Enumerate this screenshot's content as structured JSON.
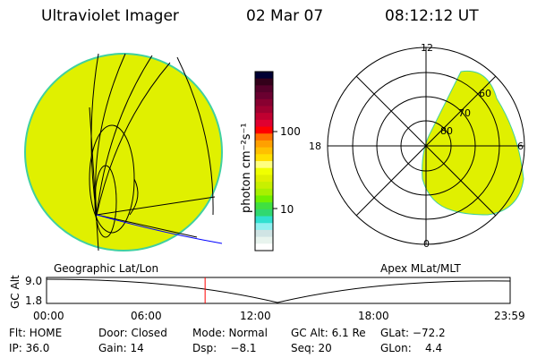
{
  "header": {
    "instrument": "Ultraviolet Imager",
    "date": "02 Mar 07",
    "time": "08:12:12 UT"
  },
  "colorbar": {
    "label": "photon cm⁻²s⁻¹",
    "ticks": [
      "100",
      "10"
    ],
    "colors": [
      "#000033",
      "#33001a",
      "#55002a",
      "#6a0030",
      "#880030",
      "#a00030",
      "#c00030",
      "#e00030",
      "#ff0000",
      "#ff7000",
      "#ffa000",
      "#ffc000",
      "#ffe000",
      "#ffff80",
      "#f0ff00",
      "#e0f000",
      "#c8f000",
      "#a8f000",
      "#70f000",
      "#40e040",
      "#30d870",
      "#30e0d0",
      "#90f0f0",
      "#d0e4e4",
      "#e8f4ee",
      "#ffffff"
    ]
  },
  "left_map": {
    "caption": "Geographic Lat/Lon",
    "fill": "#e0f000",
    "edge": "#40d0a0"
  },
  "right_map": {
    "caption": "Apex MLat/MLT",
    "mlt_labels": [
      "12",
      "18",
      "6",
      "0"
    ],
    "lat_labels": [
      "60",
      "70",
      "80"
    ],
    "fill": "#e0f000"
  },
  "altitude_plot": {
    "ylabel": "GC Alt",
    "yticks": [
      "9.0",
      "1.8"
    ],
    "xticks": [
      "00:00",
      "06:00",
      "12:00",
      "18:00",
      "23:59"
    ],
    "current_marker_color": "#ff0000",
    "current_time_fraction": 0.342
  },
  "status": [
    [
      "Flt: HOME",
      "Door: Closed",
      "Mode: Normal",
      "GC Alt: 6.1 Re",
      "GLat: −72.2"
    ],
    [
      "IP: 36.0",
      "Gain: 14",
      "Dsp:    −8.1",
      "Seq: 20",
      "GLon:    4.4"
    ]
  ]
}
